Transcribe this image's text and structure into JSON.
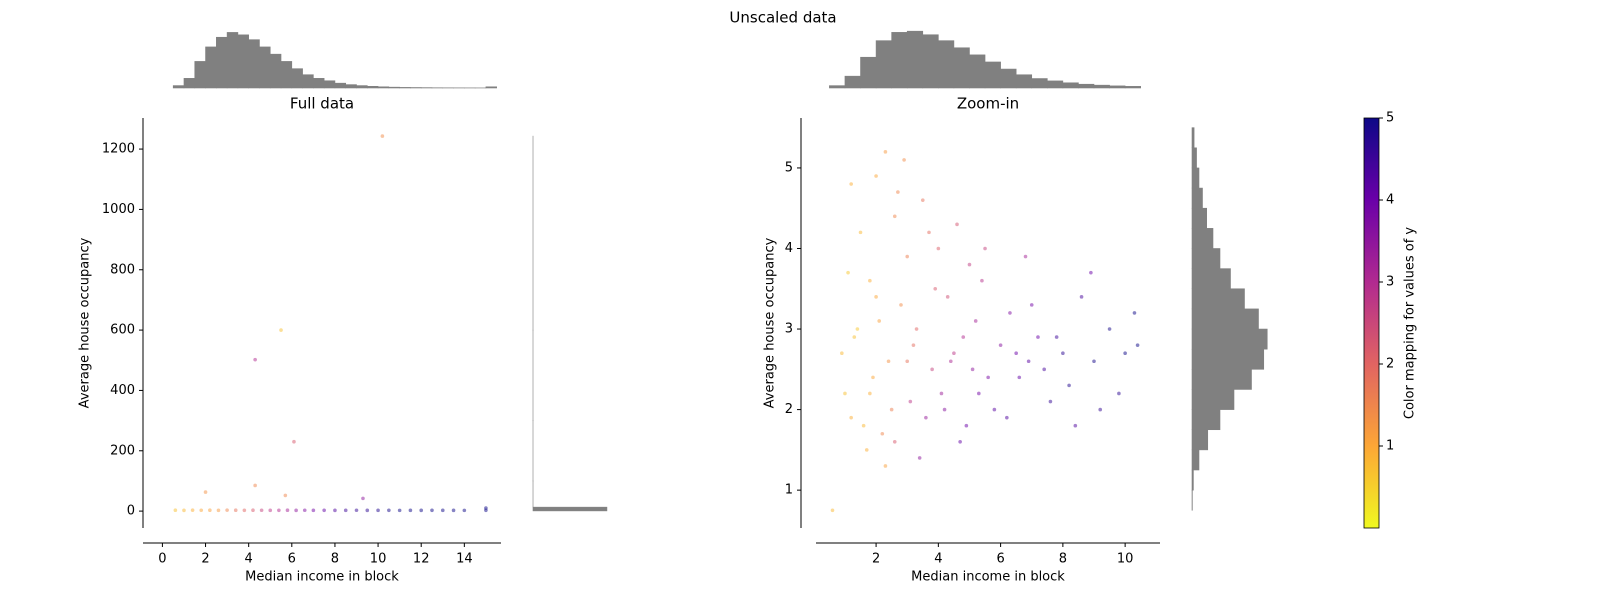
{
  "title": "Unscaled data",
  "chart_data": [
    {
      "type": "histogram",
      "color": "#808080",
      "bins": [
        0.5,
        1.0,
        1.5,
        2.0,
        2.5,
        3.0,
        3.5,
        4.0,
        4.5,
        5.0,
        5.5,
        6.0,
        6.5,
        7.0,
        7.5,
        8.0,
        8.5,
        9.0,
        9.5,
        10.0,
        10.5,
        11.0,
        11.5,
        12.0,
        12.5,
        13.0,
        13.5,
        14.0,
        14.5,
        15.0,
        15.5
      ],
      "values": [
        100,
        400,
        1100,
        1700,
        2100,
        2300,
        2200,
        2000,
        1700,
        1400,
        1100,
        800,
        550,
        400,
        300,
        200,
        140,
        100,
        70,
        50,
        35,
        25,
        20,
        15,
        10,
        8,
        6,
        5,
        4,
        50
      ],
      "xlim": [
        -0.9,
        15.7
      ],
      "ylim": [
        0,
        2400
      ]
    },
    {
      "type": "scatter",
      "title": "Full data",
      "x_label": "Median income in block",
      "y_label": "Average house occupancy",
      "x": [
        0.6,
        1.0,
        1.4,
        1.8,
        2.2,
        2.6,
        3.0,
        3.4,
        3.8,
        4.2,
        4.6,
        5.0,
        5.4,
        5.8,
        6.2,
        6.6,
        7.0,
        7.5,
        8.0,
        8.5,
        9.0,
        9.5,
        10.0,
        10.5,
        11.0,
        11.5,
        12.0,
        12.5,
        13.0,
        13.5,
        14.0,
        15.0,
        10.2,
        5.5,
        4.3,
        6.1,
        4.3,
        2.0,
        5.7,
        9.3,
        15.0
      ],
      "y": [
        3,
        2.5,
        3.2,
        2.8,
        3,
        2.6,
        3.1,
        2.9,
        2.7,
        3,
        2.8,
        2.6,
        2.7,
        2.9,
        2.5,
        2.8,
        2.6,
        2.7,
        2.5,
        2.6,
        2.8,
        2.5,
        2.6,
        2.7,
        2.4,
        2.6,
        2.5,
        2.7,
        2.6,
        2.5,
        2.4,
        2.7,
        1243,
        600,
        502,
        230,
        85,
        63,
        52,
        42,
        10
      ],
      "c": [
        0.7,
        0.8,
        0.9,
        1.0,
        1.1,
        1.2,
        1.5,
        1.8,
        2.0,
        2.2,
        2.6,
        2.8,
        3.0,
        3.2,
        3.5,
        3.7,
        3.9,
        4.1,
        4.3,
        4.5,
        4.6,
        4.7,
        4.8,
        4.9,
        5.0,
        5.0,
        5.0,
        5.0,
        5.0,
        5.0,
        5.0,
        5.0,
        1.4,
        0.7,
        3.0,
        2.2,
        1.5,
        1.3,
        1.5,
        3.5,
        5.0
      ],
      "xlim": [
        -0.9,
        15.7
      ],
      "ylim": [
        -56,
        1303
      ],
      "xticks": [
        0,
        2,
        4,
        6,
        8,
        10,
        12,
        14
      ],
      "yticks": [
        0,
        200,
        400,
        600,
        800,
        1000,
        1200
      ],
      "colormap": [
        "#f0f921",
        "#fca636",
        "#e16462",
        "#b12a90",
        "#6a00a8",
        "#0d0887"
      ],
      "clim": [
        0,
        5
      ],
      "alpha": 0.5
    },
    {
      "type": "histogram",
      "orientation": "horizontal",
      "color": "#808080",
      "bins": [
        0.7,
        13.1,
        100,
        300,
        600,
        1243
      ],
      "values": [
        20620,
        10,
        3,
        3,
        4
      ],
      "xlim": [
        0,
        20640
      ],
      "ylim": [
        -56,
        1303
      ]
    },
    {
      "type": "histogram",
      "color": "#808080",
      "bins": [
        0.5,
        1.0,
        1.5,
        2.0,
        2.5,
        3.0,
        3.5,
        4.0,
        4.5,
        5.0,
        5.5,
        6.0,
        6.5,
        7.0,
        7.5,
        8.0,
        8.5,
        9.0,
        9.5,
        10.0,
        10.5
      ],
      "values": [
        100,
        500,
        1300,
        2000,
        2350,
        2400,
        2250,
        2000,
        1700,
        1400,
        1100,
        800,
        560,
        400,
        300,
        220,
        160,
        120,
        90,
        70
      ],
      "xlim": [
        0.07,
        11.12
      ],
      "ylim": [
        0,
        2450
      ]
    },
    {
      "type": "scatter",
      "title": "Zoom-in",
      "x_label": "Median income in block",
      "y_label": "Average house occupancy",
      "x": [
        1.2,
        1.5,
        1.8,
        2.1,
        2.4,
        1.0,
        1.6,
        2.0,
        2.6,
        3.0,
        1.3,
        1.9,
        2.3,
        2.8,
        3.2,
        1.1,
        1.7,
        2.5,
        3.5,
        4.0,
        2.2,
        2.9,
        3.3,
        3.8,
        4.3,
        4.6,
        5.0,
        3.6,
        4.1,
        4.8,
        2.7,
        3.1,
        3.9,
        4.4,
        5.2,
        5.6,
        6.0,
        4.9,
        5.4,
        6.3,
        5.8,
        6.5,
        7.0,
        7.4,
        6.8,
        7.8,
        8.2,
        8.6,
        9.0,
        9.5,
        10.0,
        10.3,
        9.8,
        8.9,
        7.6,
        6.2,
        5.5,
        4.7,
        3.4,
        2.3,
        1.4,
        0.9,
        0.6,
        1.2,
        2.0,
        3.0,
        4.2,
        5.1,
        6.6,
        7.2,
        8.0,
        9.2,
        10.4,
        3.7,
        2.6,
        1.8,
        4.5,
        5.3,
        6.9,
        8.4
      ],
      "y": [
        4.8,
        4.2,
        3.6,
        3.1,
        2.6,
        2.2,
        1.8,
        4.9,
        4.4,
        3.9,
        2.9,
        2.4,
        5.2,
        3.3,
        2.8,
        3.7,
        1.5,
        2.0,
        4.6,
        4.0,
        1.7,
        5.1,
        3.0,
        2.5,
        3.4,
        4.3,
        3.8,
        1.9,
        2.2,
        2.9,
        4.7,
        2.1,
        3.5,
        2.6,
        3.1,
        2.4,
        2.8,
        1.8,
        3.6,
        3.2,
        2.0,
        2.7,
        3.3,
        2.5,
        3.9,
        2.9,
        2.3,
        3.4,
        2.6,
        3.0,
        2.7,
        3.2,
        2.2,
        3.7,
        2.1,
        1.9,
        4.0,
        1.6,
        1.4,
        1.3,
        3.0,
        2.7,
        0.75,
        1.9,
        3.4,
        2.6,
        2.0,
        2.5,
        2.4,
        2.9,
        2.7,
        2.0,
        2.8,
        4.2,
        1.6,
        2.2,
        2.7,
        2.2,
        2.6,
        1.8
      ],
      "c": [
        0.9,
        0.8,
        0.9,
        1.1,
        1.3,
        0.7,
        0.8,
        1.0,
        1.5,
        1.6,
        0.7,
        1.0,
        1.2,
        1.4,
        1.9,
        0.6,
        0.9,
        1.6,
        1.8,
        2.1,
        1.5,
        1.4,
        2.0,
        2.6,
        2.4,
        2.3,
        2.7,
        3.4,
        3.3,
        3.0,
        1.5,
        2.8,
        2.2,
        3.1,
        3.2,
        3.8,
        3.6,
        4.0,
        2.9,
        3.7,
        4.2,
        4.0,
        3.9,
        4.4,
        3.2,
        4.5,
        4.8,
        4.4,
        4.9,
        4.9,
        5.0,
        5.0,
        4.7,
        4.0,
        4.6,
        4.3,
        2.6,
        4.1,
        3.5,
        1.1,
        0.6,
        0.8,
        0.8,
        0.9,
        1.0,
        1.8,
        3.6,
        3.5,
        4.1,
        4.0,
        4.7,
        4.6,
        5.0,
        1.9,
        2.2,
        0.9,
        2.8,
        3.9,
        4.2,
        4.3
      ],
      "xlim": [
        0.07,
        11.12
      ],
      "ylim": [
        0.53,
        5.62
      ],
      "xticks": [
        2,
        4,
        6,
        8,
        10
      ],
      "yticks": [
        1,
        2,
        3,
        4,
        5
      ],
      "colormap": [
        "#f0f921",
        "#fca636",
        "#e16462",
        "#b12a90",
        "#6a00a8",
        "#0d0887"
      ],
      "clim": [
        0,
        5
      ],
      "alpha": 0.5
    },
    {
      "type": "histogram",
      "orientation": "horizontal",
      "color": "#808080",
      "bins": [
        0.75,
        1.0,
        1.25,
        1.5,
        1.75,
        2.0,
        2.25,
        2.5,
        2.75,
        3.0,
        3.25,
        3.5,
        3.75,
        4.0,
        4.25,
        4.5,
        4.75,
        5.0,
        5.25,
        5.5
      ],
      "values": [
        10,
        40,
        200,
        450,
        800,
        1200,
        1700,
        2050,
        2150,
        1900,
        1500,
        1100,
        800,
        600,
        420,
        300,
        200,
        130,
        60
      ],
      "xlim": [
        0,
        2200
      ],
      "ylim": [
        0.53,
        5.62
      ]
    },
    {
      "type": "colorbar",
      "label": "Color mapping for values of y",
      "colormap": [
        "#f0f921",
        "#fca636",
        "#e16462",
        "#b12a90",
        "#6a00a8",
        "#0d0887"
      ],
      "ylim": [
        0,
        5
      ],
      "yticks": [
        1,
        2,
        3,
        4,
        5
      ]
    }
  ]
}
